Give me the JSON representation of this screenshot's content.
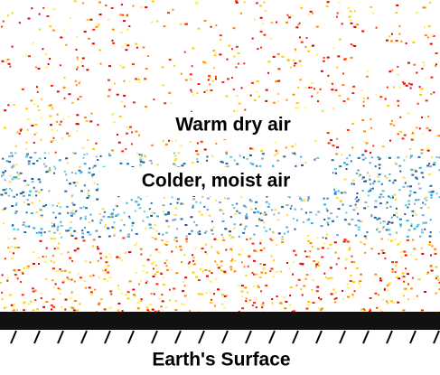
{
  "labels": {
    "upper_layer": "Warm dry air",
    "lower_layer": "Colder, moist air",
    "ground": "Earth's Surface"
  }
}
